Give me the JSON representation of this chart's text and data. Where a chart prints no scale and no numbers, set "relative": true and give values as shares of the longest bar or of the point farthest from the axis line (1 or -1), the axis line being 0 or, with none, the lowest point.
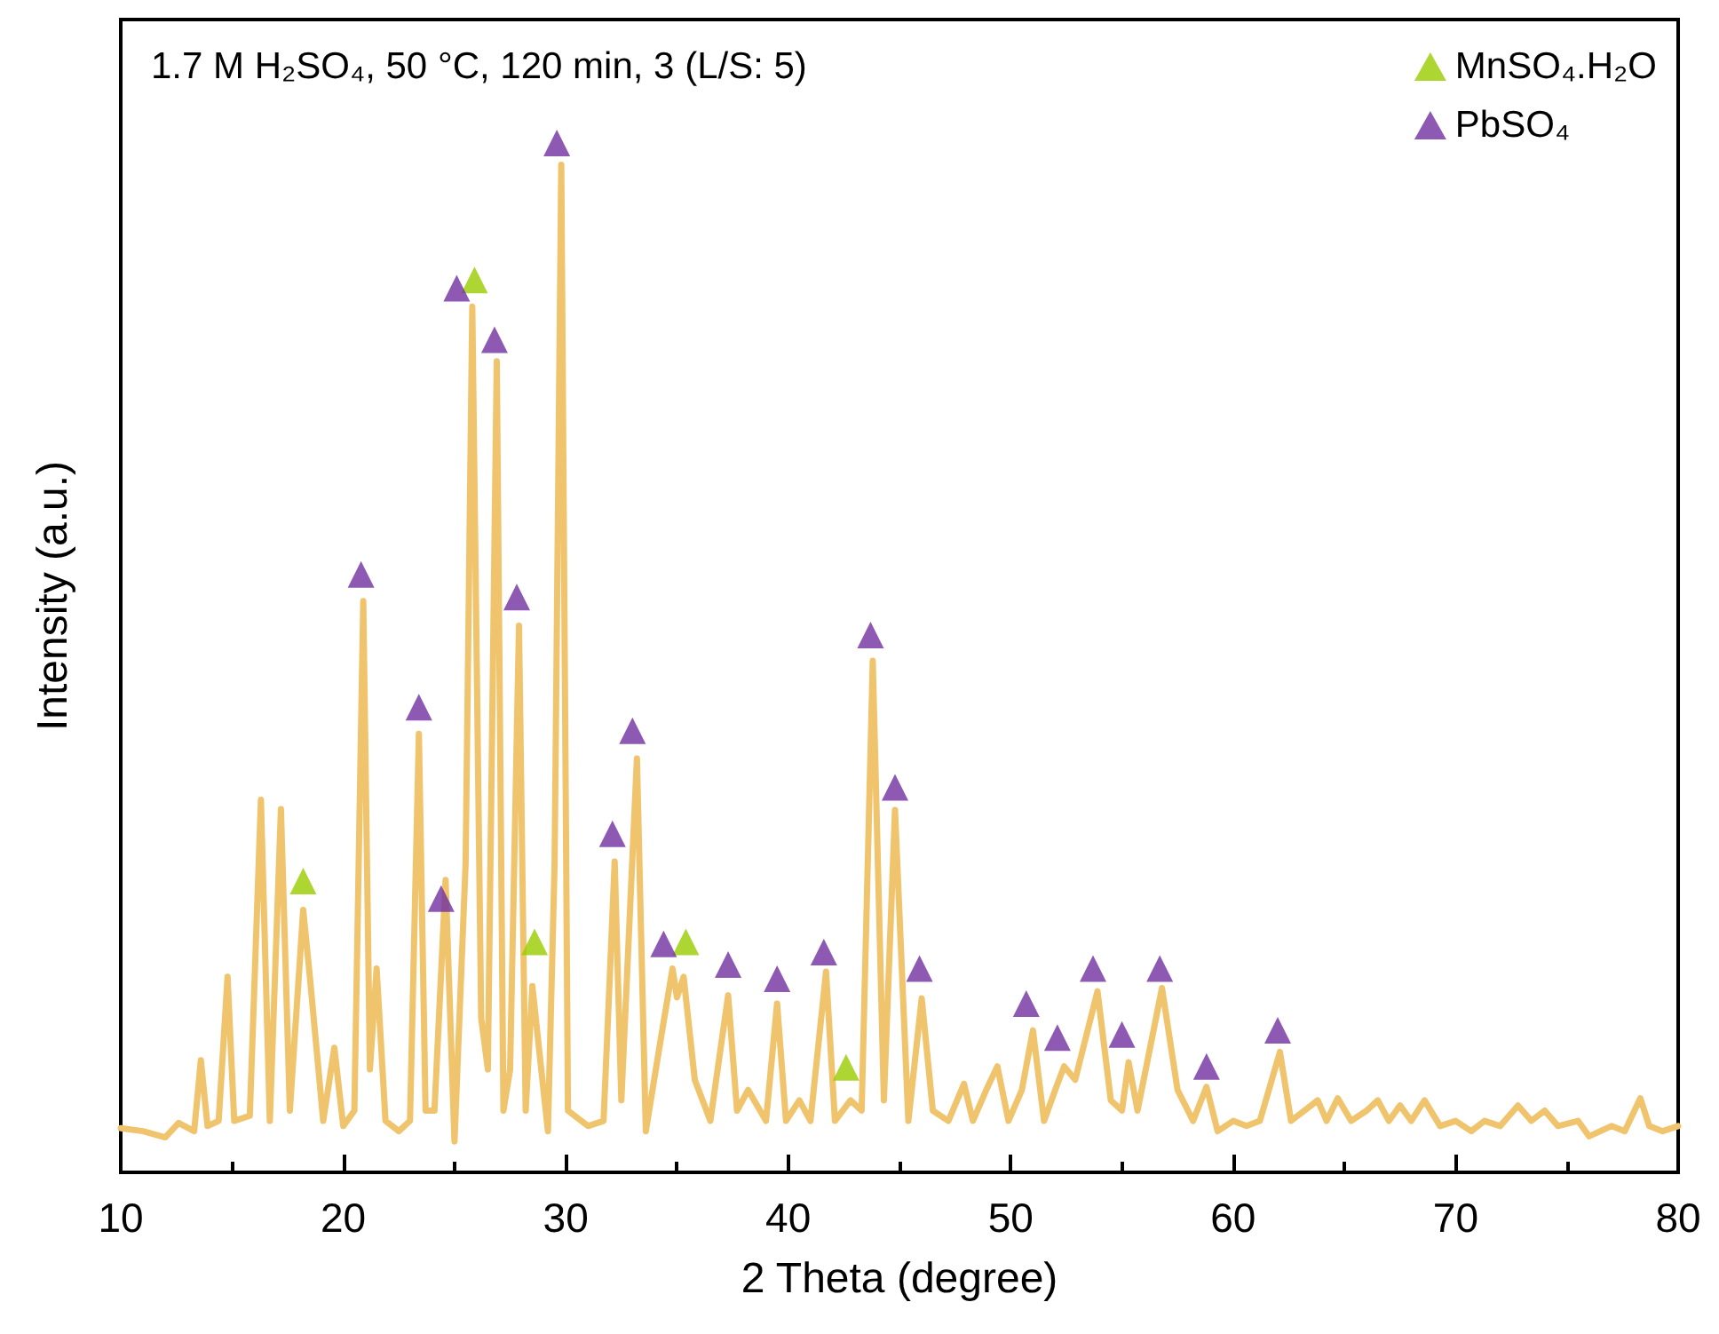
{
  "chart_data": {
    "type": "line",
    "relative": true,
    "title": "1.7 M H₂SO₄, 50 °C, 120 min, 3 (L/S: 5)",
    "xlabel": "2 Theta (degree)",
    "ylabel": "Intensity (a.u.)",
    "xlim": [
      10,
      80
    ],
    "xticks": [
      10,
      20,
      30,
      40,
      50,
      60,
      70,
      80
    ],
    "grid": false,
    "legend": "top right",
    "series": [
      {
        "color": "#f0c46c",
        "marker": "none",
        "line_style": "solid",
        "x": [
          10,
          11,
          12,
          12.6,
          13.3,
          13.6,
          13.9,
          14.4,
          14.8,
          15.1,
          15.8,
          16.3,
          16.7,
          17.2,
          17.6,
          18.2,
          18.5,
          19.1,
          19.6,
          20.0,
          20.5,
          20.9,
          21.2,
          21.5,
          21.9,
          22.5,
          23.0,
          23.4,
          23.7,
          24.1,
          24.6,
          25.0,
          25.5,
          25.8,
          26.2,
          26.5,
          26.9,
          27.2,
          27.5,
          27.9,
          28.2,
          28.5,
          28.9,
          29.2,
          29.5,
          29.8,
          30.1,
          31.0,
          31.7,
          32.0,
          32.2,
          32.5,
          33.2,
          33.6,
          34.2,
          34.8,
          35.0,
          35.3,
          35.8,
          36.5,
          37.3,
          37.7,
          38.2,
          39.0,
          39.5,
          39.9,
          40.5,
          41.0,
          41.7,
          42.1,
          42.8,
          43.3,
          43.8,
          44.3,
          44.8,
          45.4,
          46.0,
          46.5,
          47.2,
          47.9,
          48.3,
          48.9,
          49.4,
          49.9,
          50.5,
          51.0,
          51.5,
          52.0,
          52.4,
          52.9,
          53.9,
          54.5,
          55.0,
          55.3,
          55.7,
          56.8,
          57.5,
          58.2,
          58.8,
          59.3,
          60.0,
          60.6,
          61.2,
          62.1,
          62.6,
          63.2,
          63.8,
          64.2,
          64.7,
          65.3,
          66.0,
          66.5,
          67.0,
          67.5,
          68.0,
          68.6,
          69.3,
          70.0,
          70.7,
          71.3,
          72.0,
          72.8,
          73.4,
          74.0,
          74.6,
          75.5,
          76.0,
          77.0,
          77.6,
          78.3,
          78.7,
          79.3,
          80
        ],
        "values": [
          0.043,
          0.04,
          0.034,
          0.048,
          0.04,
          0.109,
          0.045,
          0.05,
          0.19,
          0.05,
          0.055,
          0.362,
          0.05,
          0.353,
          0.06,
          0.255,
          0.19,
          0.05,
          0.121,
          0.045,
          0.06,
          0.555,
          0.1,
          0.198,
          0.05,
          0.04,
          0.05,
          0.426,
          0.06,
          0.06,
          0.284,
          0.03,
          0.3,
          0.841,
          0.15,
          0.1,
          0.788,
          0.06,
          0.1,
          0.531,
          0.06,
          0.181,
          0.1,
          0.04,
          0.3,
          0.979,
          0.06,
          0.045,
          0.05,
          0.2,
          0.302,
          0.07,
          0.402,
          0.04,
          0.12,
          0.198,
          0.17,
          0.19,
          0.09,
          0.05,
          0.172,
          0.06,
          0.08,
          0.05,
          0.164,
          0.05,
          0.07,
          0.05,
          0.195,
          0.05,
          0.07,
          0.06,
          0.497,
          0.07,
          0.352,
          0.05,
          0.169,
          0.06,
          0.05,
          0.086,
          0.05,
          0.08,
          0.103,
          0.05,
          0.08,
          0.138,
          0.05,
          0.08,
          0.103,
          0.09,
          0.176,
          0.07,
          0.06,
          0.107,
          0.06,
          0.179,
          0.08,
          0.05,
          0.083,
          0.04,
          0.05,
          0.045,
          0.05,
          0.117,
          0.05,
          0.06,
          0.07,
          0.05,
          0.072,
          0.05,
          0.06,
          0.07,
          0.05,
          0.065,
          0.05,
          0.07,
          0.045,
          0.05,
          0.04,
          0.05,
          0.045,
          0.065,
          0.05,
          0.06,
          0.045,
          0.05,
          0.035,
          0.045,
          0.04,
          0.072,
          0.045,
          0.04,
          0.045
        ]
      },
      {
        "type": "scatter",
        "name": "MnSO₄.H₂O",
        "color": "#99cc00",
        "marker": "triangle",
        "x": [
          18.2,
          25.9,
          28.6,
          35.4,
          42.6
        ],
        "values": [
          0.283,
          0.867,
          0.224,
          0.224,
          0.102
        ]
      },
      {
        "type": "scatter",
        "name": "PbSO₄",
        "color": "#7030a0",
        "marker": "triangle",
        "x": [
          20.8,
          23.4,
          24.4,
          25.1,
          26.8,
          27.8,
          29.6,
          32.1,
          33.0,
          34.4,
          37.3,
          39.5,
          41.6,
          43.7,
          44.8,
          45.9,
          50.7,
          52.1,
          53.7,
          55.0,
          56.7,
          58.8,
          62.0
        ],
        "values": [
          0.581,
          0.452,
          0.266,
          0.859,
          0.809,
          0.559,
          1.0,
          0.329,
          0.429,
          0.222,
          0.202,
          0.188,
          0.214,
          0.522,
          0.374,
          0.198,
          0.164,
          0.131,
          0.198,
          0.134,
          0.198,
          0.103,
          0.138
        ]
      }
    ]
  }
}
